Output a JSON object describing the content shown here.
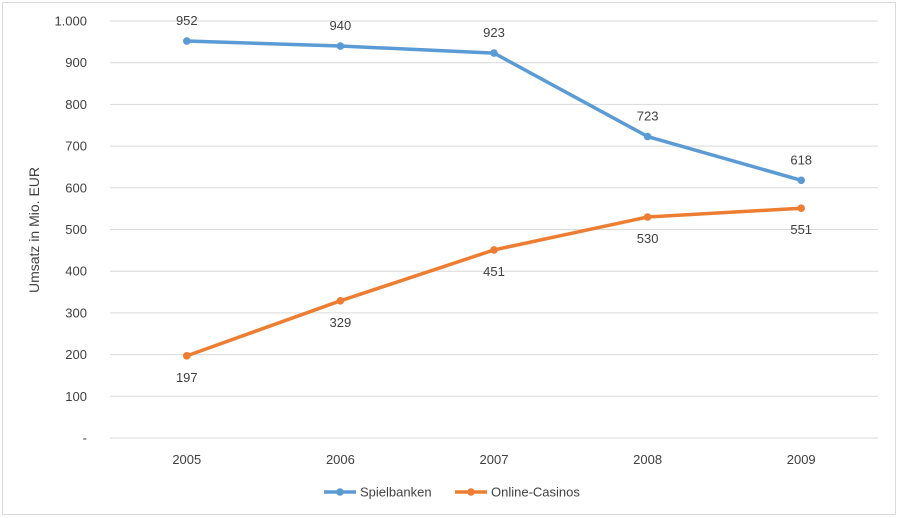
{
  "chart_data": {
    "type": "line",
    "title": "",
    "xlabel": "",
    "ylabel": "Umsatz in Mio. EUR",
    "categories": [
      "2005",
      "2006",
      "2007",
      "2008",
      "2009"
    ],
    "ylim": [
      0,
      1000
    ],
    "yticks": [
      0,
      100,
      200,
      300,
      400,
      500,
      600,
      700,
      800,
      900,
      1000
    ],
    "ytick_labels": [
      "-",
      "100",
      "200",
      "300",
      "400",
      "500",
      "600",
      "700",
      "800",
      "900",
      "1.000"
    ],
    "grid": true,
    "legend_position": "bottom",
    "series": [
      {
        "name": "Spielbanken",
        "values": [
          952,
          940,
          923,
          723,
          618
        ],
        "color": "#5b9bd5",
        "label_position": "above"
      },
      {
        "name": "Online-Casinos",
        "values": [
          197,
          329,
          451,
          530,
          551
        ],
        "color": "#ed7d31",
        "label_position": "below"
      }
    ]
  }
}
